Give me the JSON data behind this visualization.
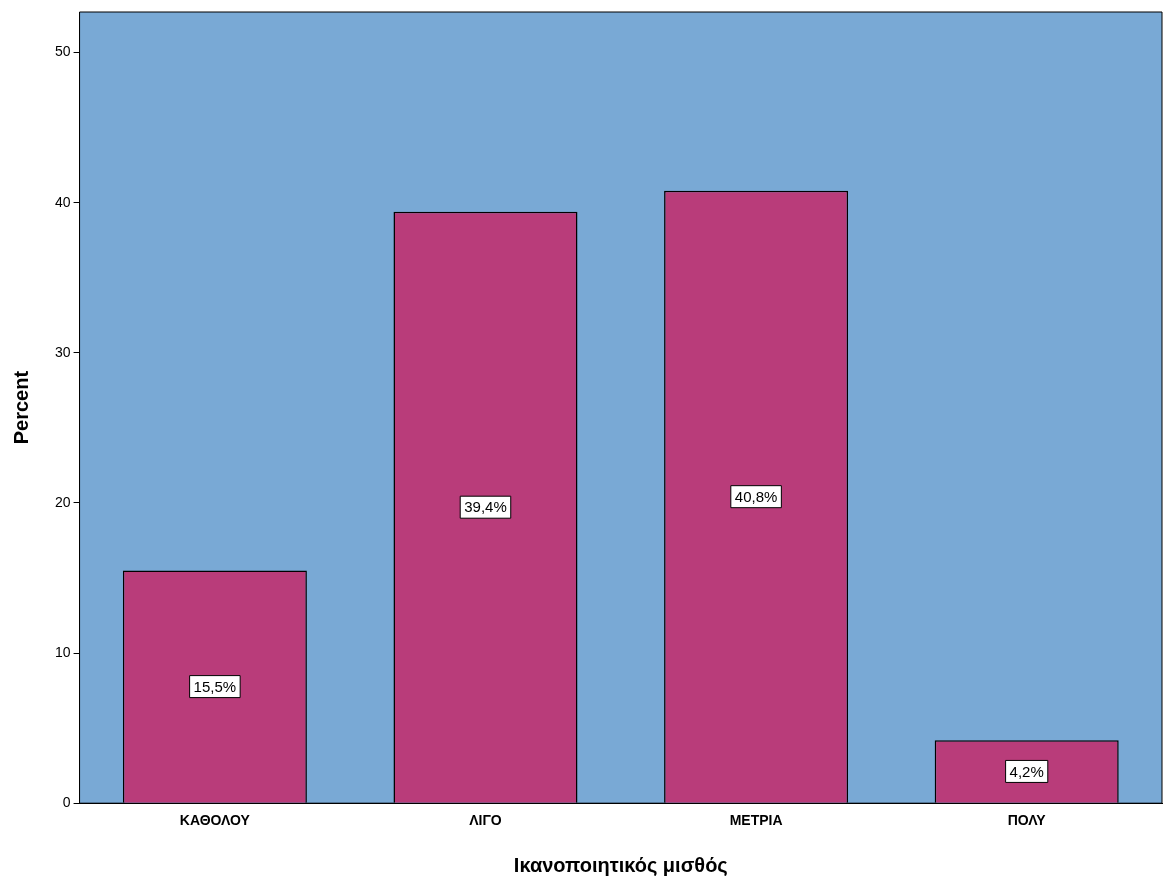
{
  "chart_data": {
    "type": "bar",
    "xlabel": "Ικανοποιητικός μισθός",
    "ylabel": "Percent",
    "categories": [
      "ΚΑΘΟΛΟΥ",
      "ΛΙΓΟ",
      "ΜΕΤΡΙΑ",
      "ΠΟΛΥ"
    ],
    "values": [
      15.5,
      39.4,
      40.8,
      4.2
    ],
    "color": "#b93c7a",
    "value_labels": [
      "15,5%",
      "39,4%",
      "40,8%",
      "4,2%"
    ],
    "ylim": [
      0,
      52.7
    ],
    "yticks": [
      0,
      10,
      20,
      30,
      40,
      50
    ],
    "grid": false,
    "legend": false
  }
}
